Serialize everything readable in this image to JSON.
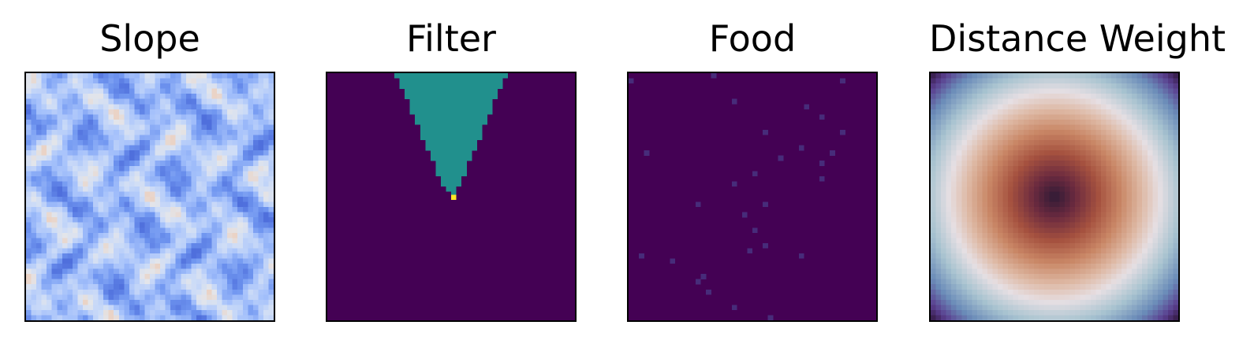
{
  "chart_data": [
    {
      "type": "heatmap",
      "title": "Slope",
      "colormap": "coolwarm",
      "grid": false,
      "axes_visible": false
    },
    {
      "type": "heatmap",
      "title": "Filter",
      "colormap": "viridis",
      "grid": false,
      "axes_visible": false,
      "colors": {
        "background": "#440154",
        "cone": "#21908d",
        "origin": "#fde725"
      }
    },
    {
      "type": "heatmap",
      "title": "Food",
      "colormap": "viridis",
      "grid": false,
      "axes_visible": false,
      "colors": {
        "background": "#440154",
        "item": "#472c7a"
      }
    },
    {
      "type": "heatmap",
      "title": "Distance Weight",
      "colormap": "twilight",
      "grid": false,
      "axes_visible": false
    }
  ]
}
